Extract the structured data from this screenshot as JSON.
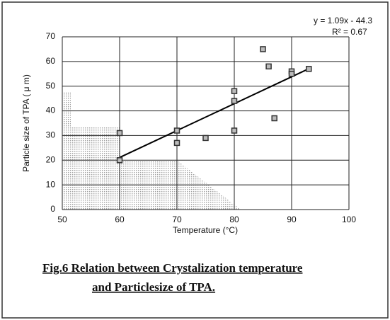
{
  "chart_data": {
    "type": "scatter",
    "x_label": "Temperature (°C)",
    "y_label": "Particle size of TPA ( μ m)",
    "caption_lines": [
      "Fig.6    Relation between Crystalization temperature",
      "and Particlesize of TPA."
    ],
    "x": [
      60,
      60,
      70,
      70,
      75,
      80,
      80,
      80,
      85,
      86,
      87,
      90,
      90,
      93
    ],
    "values": [
      31,
      20,
      32,
      27,
      29,
      48,
      44,
      32,
      65,
      58,
      37,
      56,
      55,
      57
    ],
    "color": "#333333",
    "trendline": {
      "slope": 1.09,
      "intercept": -44.3,
      "label": "y = 1.09x - 44.3",
      "r2_label": "R² = 0.67"
    },
    "xlim": [
      50,
      100
    ],
    "xticks": [
      50,
      60,
      70,
      80,
      90,
      100
    ],
    "ylim": [
      0,
      70
    ],
    "yticks": [
      0,
      10,
      20,
      30,
      40,
      50,
      60,
      70
    ],
    "grid": true
  }
}
